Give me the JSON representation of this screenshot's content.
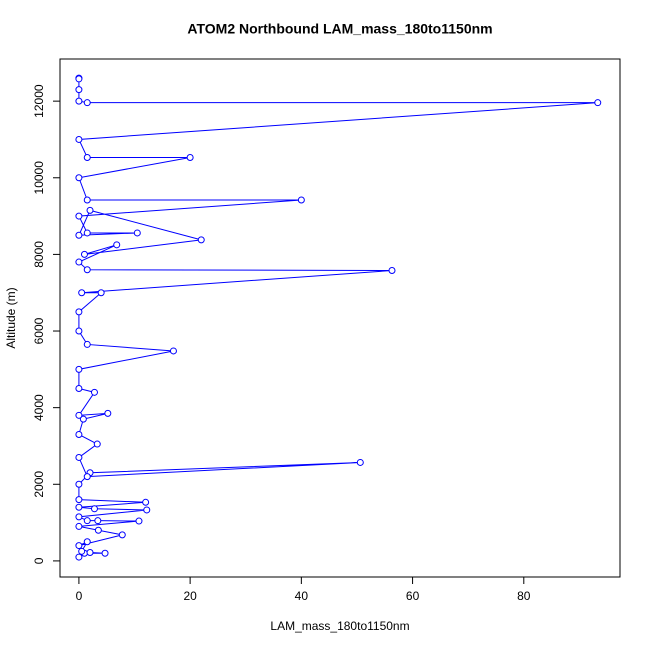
{
  "chart_data": {
    "type": "line",
    "title": "ATOM2 Northbound LAM_mass_180to1150nm",
    "x_label": "LAM_mass_180to1150nm",
    "y_label": "Altitude (m)",
    "color": "#0000ff",
    "markers": true,
    "x": [
      0,
      1,
      4.7,
      2,
      0.5,
      1.5,
      0,
      7.8,
      3.5,
      0,
      10.8,
      3.4,
      1.5,
      0,
      12.2,
      2.8,
      0,
      12,
      0,
      0,
      2,
      50.6,
      1.5,
      0,
      3.3,
      0,
      0.8,
      5.2,
      0,
      2.8,
      0,
      0,
      17,
      1.5,
      0,
      0,
      4,
      0.5,
      56.3,
      1.5,
      0,
      6.8,
      1,
      22,
      2,
      0,
      10.5,
      1.5,
      0,
      40,
      1.5,
      0,
      20,
      1.5,
      0,
      93.3,
      1.5,
      0,
      0,
      0,
      0
    ],
    "values": [
      100,
      200,
      200,
      220,
      250,
      500,
      400,
      680,
      800,
      900,
      1040,
      1050,
      1050,
      1150,
      1330,
      1360,
      1400,
      1530,
      1600,
      2000,
      2300,
      2570,
      2200,
      2700,
      3050,
      3300,
      3700,
      3850,
      3800,
      4400,
      4500,
      5000,
      5480,
      5650,
      6000,
      6500,
      7000,
      7000,
      7580,
      7600,
      7800,
      8250,
      8000,
      8380,
      9150,
      8500,
      8560,
      8560,
      9000,
      9420,
      9420,
      10000,
      10530,
      10530,
      11000,
      11960,
      11960,
      12000,
      12300,
      12600,
      12580
    ],
    "xlim": [
      -3.4,
      97.3
    ],
    "ylim": [
      -420,
      13100
    ],
    "xticks": [
      0,
      20,
      40,
      60,
      80
    ],
    "yticks": [
      0,
      2000,
      4000,
      6000,
      8000,
      10000,
      12000
    ]
  }
}
